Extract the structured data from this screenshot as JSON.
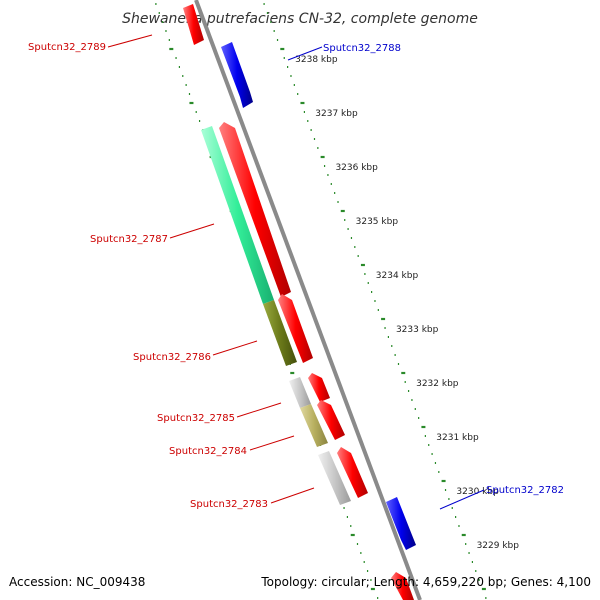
{
  "title": "Shewanella putrefaciens CN-32, complete genome",
  "footer": {
    "accession": "Accession: NC_009438",
    "summary": "Topology: circular; Length: 4,659,220 bp; Genes: 4,100"
  },
  "colors": {
    "backbone": "#8a8a8a",
    "tick": "#2a8a2a",
    "forward_label": "#cc0000",
    "reverse_label": "#0000cc"
  },
  "kbp_ticks": [
    "3238 kbp",
    "3237 kbp",
    "3236 kbp",
    "3235 kbp",
    "3234 kbp",
    "3233 kbp",
    "3232 kbp",
    "3231 kbp",
    "3230 kbp",
    "3229 kbp"
  ],
  "gene_labels": [
    {
      "name": "Sputcn32_2789",
      "color": "#cc0000"
    },
    {
      "name": "Sputcn32_2788",
      "color": "#0000cc"
    },
    {
      "name": "Sputcn32_2787",
      "color": "#cc0000"
    },
    {
      "name": "Sputcn32_2786",
      "color": "#cc0000"
    },
    {
      "name": "Sputcn32_2785",
      "color": "#cc0000"
    },
    {
      "name": "Sputcn32_2784",
      "color": "#cc0000"
    },
    {
      "name": "Sputcn32_2783",
      "color": "#cc0000"
    },
    {
      "name": "Sputcn32_2782",
      "color": "#0000cc"
    }
  ],
  "features": [
    {
      "name": "cds-3238-top",
      "color": "#ff1a1a",
      "track": "forward-cds"
    },
    {
      "name": "cds-3238-rev",
      "color": "#0000ee",
      "track": "reverse-cds"
    },
    {
      "name": "gene-2787",
      "color": "#33ee99",
      "track": "forward-gene"
    },
    {
      "name": "cds-2787",
      "color": "#ff1a1a",
      "track": "forward-cds"
    },
    {
      "name": "gene-2786",
      "color": "#6b7a1a",
      "track": "forward-gene"
    },
    {
      "name": "cds-2786",
      "color": "#ff1a1a",
      "track": "forward-cds"
    },
    {
      "name": "gene-2785",
      "color": "#c8c8c8",
      "track": "forward-gene"
    },
    {
      "name": "cds-2785",
      "color": "#ff1a1a",
      "track": "forward-cds"
    },
    {
      "name": "gene-2784",
      "color": "#b8b060",
      "track": "forward-gene"
    },
    {
      "name": "cds-2784",
      "color": "#ff1a1a",
      "track": "forward-cds"
    },
    {
      "name": "gene-2783",
      "color": "#c8c8c8",
      "track": "forward-gene"
    },
    {
      "name": "cds-2783",
      "color": "#ff1a1a",
      "track": "forward-cds"
    },
    {
      "name": "cds-2782-rev",
      "color": "#0000ee",
      "track": "reverse-cds"
    },
    {
      "name": "cds-bottom",
      "color": "#ff1a1a",
      "track": "forward-cds"
    }
  ]
}
